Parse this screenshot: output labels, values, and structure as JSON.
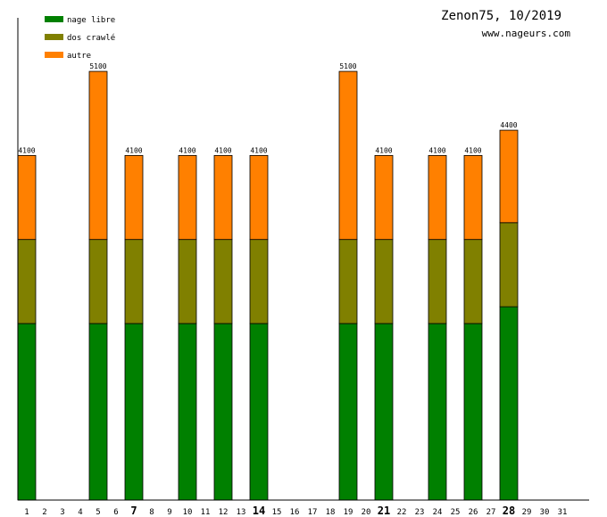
{
  "chart_data": {
    "type": "bar",
    "stacked": true,
    "title": "Zenon75, 10/2019",
    "subtitle": "www.nageurs.com",
    "categories": [
      "1",
      "2",
      "3",
      "4",
      "5",
      "6",
      "7",
      "8",
      "9",
      "10",
      "11",
      "12",
      "13",
      "14",
      "15",
      "16",
      "17",
      "18",
      "19",
      "20",
      "21",
      "22",
      "23",
      "24",
      "25",
      "26",
      "27",
      "28",
      "29",
      "30",
      "31"
    ],
    "bold_categories": [
      "7",
      "14",
      "21",
      "28"
    ],
    "series": [
      {
        "name": "nage libre",
        "color": "#008000",
        "values": [
          2100,
          0,
          0,
          0,
          2100,
          0,
          2100,
          0,
          0,
          2100,
          0,
          2100,
          0,
          2100,
          0,
          0,
          0,
          0,
          2100,
          0,
          2100,
          0,
          0,
          2100,
          0,
          2100,
          0,
          2300,
          0,
          0,
          0
        ]
      },
      {
        "name": "dos crawlé",
        "color": "#808000",
        "values": [
          1000,
          0,
          0,
          0,
          1000,
          0,
          1000,
          0,
          0,
          1000,
          0,
          1000,
          0,
          1000,
          0,
          0,
          0,
          0,
          1000,
          0,
          1000,
          0,
          0,
          1000,
          0,
          1000,
          0,
          1000,
          0,
          0,
          0
        ]
      },
      {
        "name": "autre",
        "color": "#ff8000",
        "values": [
          1000,
          0,
          0,
          0,
          2000,
          0,
          1000,
          0,
          0,
          1000,
          0,
          1000,
          0,
          1000,
          0,
          0,
          0,
          0,
          2000,
          0,
          1000,
          0,
          0,
          1000,
          0,
          1000,
          0,
          1100,
          0,
          0,
          0
        ]
      }
    ],
    "totals": [
      "4100",
      "",
      "",
      "",
      "5100",
      "",
      "4100",
      "",
      "",
      "4100",
      "",
      "4100",
      "",
      "4100",
      "",
      "",
      "",
      "",
      "5100",
      "",
      "4100",
      "",
      "",
      "4100",
      "",
      "4100",
      "",
      "4400",
      "",
      "",
      ""
    ],
    "ylim": [
      0,
      5800
    ],
    "xlabel": "",
    "ylabel": "",
    "legend_position": "top-left",
    "grid": false
  }
}
